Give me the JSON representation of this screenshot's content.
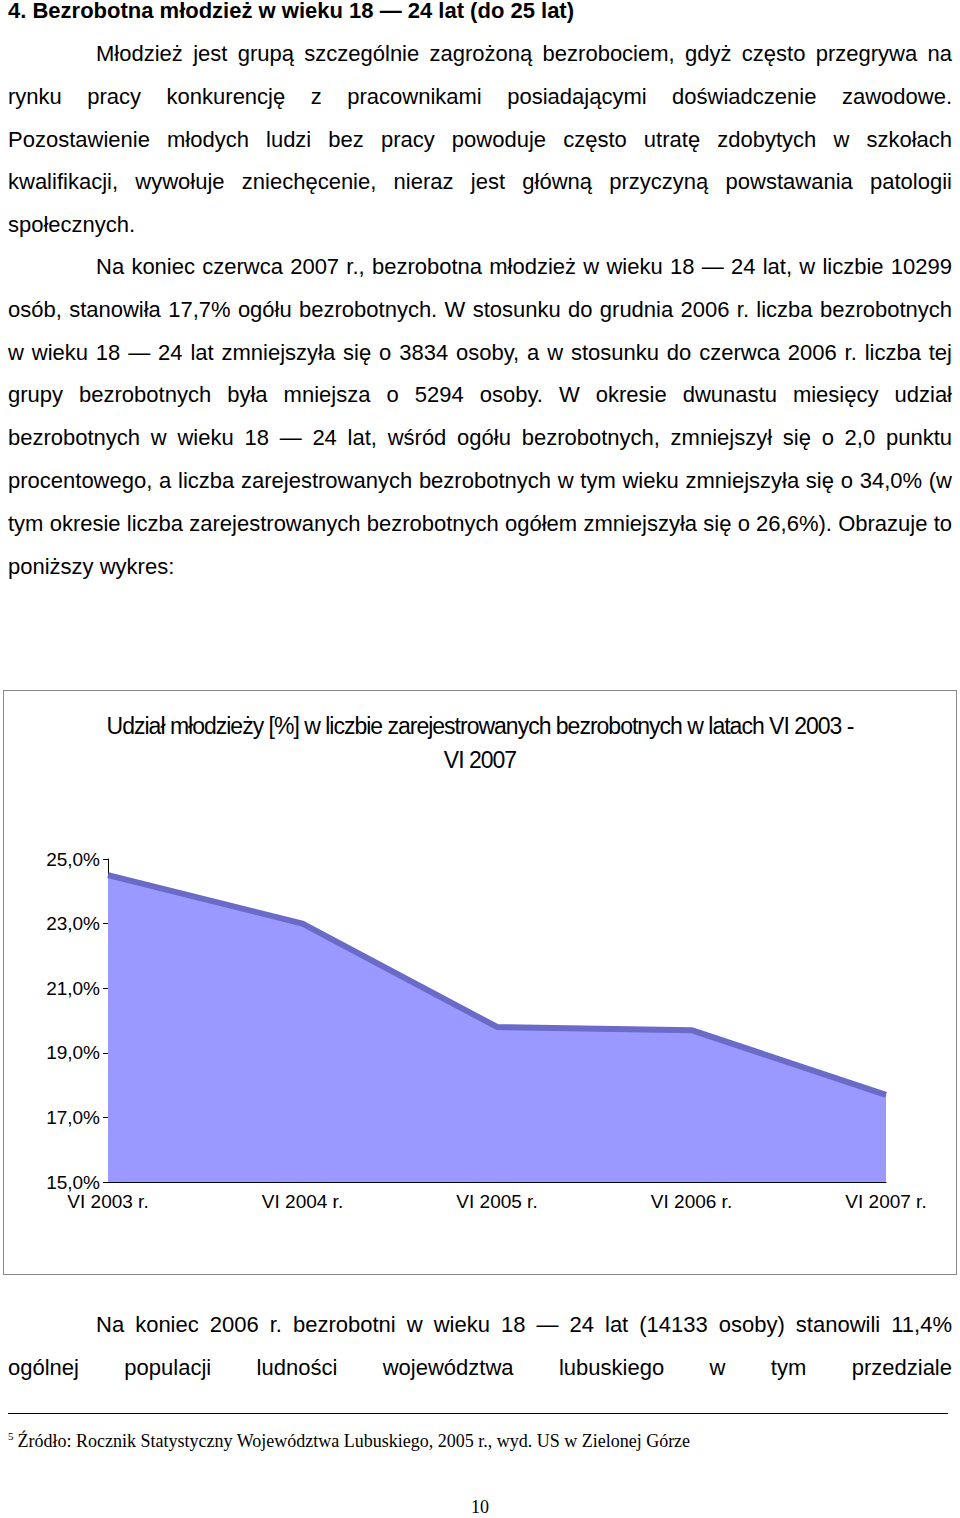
{
  "document": {
    "heading": "4. Bezrobotna młodzież w wieku 18 — 24 lat (do 25 lat)",
    "paragraphs_before_chart": [
      "Młodzież jest grupą szczególnie zagrożoną bezrobociem, gdyż często przegrywa na rynku pracy konkurencję z pracownikami posiadającymi doświadczenie zawodowe. Pozostawienie młodych ludzi bez pracy powoduje często utratę zdobytych w szkołach kwalifikacji, wywołuje zniechęcenie, nieraz jest główną przyczyną powstawania patologii społecznych.",
      "Na koniec czerwca 2007 r., bezrobotna młodzież w wieku 18 — 24 lat, w liczbie 10299 osób, stanowiła 17,7% ogółu bezrobotnych. W stosunku do grudnia 2006 r. liczba bezrobotnych w wieku 18 — 24 lat zmniejszyła się o 3834 osoby, a w stosunku do czerwca 2006 r. liczba tej grupy bezrobotnych była mniejsza o 5294 osoby. W okresie dwunastu miesięcy udział bezrobotnych w wieku 18 — 24 lat, wśród ogółu bezrobotnych, zmniejszył się o 2,0 punktu procentowego, a liczba zarejestrowanych bezrobotnych w tym wieku zmniejszyła się o 34,0% (w tym okresie liczba zarejestrowanych bezrobotnych ogółem zmniejszyła się o 26,6%). Obrazuje to poniższy wykres:"
    ],
    "paragraphs_after_chart": [
      "Na koniec 2006 r. bezrobotni w wieku 18 — 24 lat (14133 osoby) stanowili 11,4% ogólnej populacji ludności województwa lubuskiego w tym przedziale"
    ],
    "footnote": {
      "mark": "5",
      "text": "Źródło: Rocznik Statystyczny Województwa Lubuskiego, 2005 r., wyd. US w Zielonej Górze"
    },
    "page_number": "10"
  },
  "chart_data": {
    "type": "area",
    "title": "Udział młodzieży [%] w liczbie zarejestrowanych bezrobotnych w latach VI 2003 - VI 2007",
    "categories": [
      "VI 2003 r.",
      "VI 2004 r.",
      "VI 2005 r.",
      "VI 2006 r.",
      "VI 2007 r."
    ],
    "values": [
      24.5,
      23.0,
      19.8,
      19.7,
      17.7
    ],
    "color": "#9999ff",
    "ylim": [
      15,
      25
    ],
    "yticks": [
      {
        "value": 15,
        "label": "15,0%"
      },
      {
        "value": 17,
        "label": "17,0%"
      },
      {
        "value": 19,
        "label": "19,0%"
      },
      {
        "value": 21,
        "label": "21,0%"
      },
      {
        "value": 23,
        "label": "23,0%"
      },
      {
        "value": 25,
        "label": "25,0%"
      }
    ],
    "grid": false
  }
}
